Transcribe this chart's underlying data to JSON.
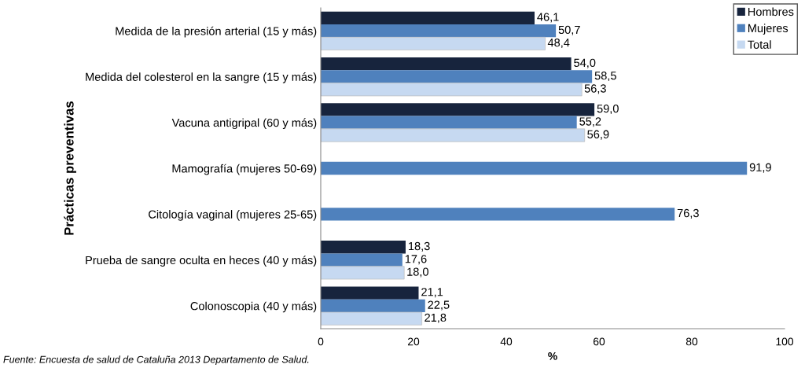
{
  "chart_data": {
    "type": "bar",
    "orientation": "horizontal",
    "xlabel": "%",
    "ylabel": "Prácticas preventivas",
    "categories": [
      "Medida de la presión arterial (15 y más)",
      "Medida del colesterol en la sangre (15 y más)",
      "Vacuna antigripal (60 y más)",
      "Mamografía (mujeres 50-69)",
      "Citología vaginal (mujeres 25-65)",
      "Prueba de sangre oculta en heces (40 y más)",
      "Colonoscopia (40 y más)"
    ],
    "series": [
      {
        "name": "Hombres",
        "color": "#17243d",
        "values": [
          46.1,
          54.0,
          59.0,
          null,
          null,
          18.3,
          21.1
        ],
        "value_labels": [
          "46,1",
          "54,0",
          "59,0",
          null,
          null,
          "18,3",
          "21,1"
        ]
      },
      {
        "name": "Mujeres",
        "color": "#4f81bd",
        "values": [
          50.7,
          58.5,
          55.2,
          91.9,
          76.3,
          17.6,
          22.5
        ],
        "value_labels": [
          "50,7",
          "58,5",
          "55,2",
          "91,9",
          "76,3",
          "17,6",
          "22,5"
        ]
      },
      {
        "name": "Total",
        "color": "#c6d9f1",
        "values": [
          48.4,
          56.3,
          56.9,
          null,
          null,
          18.0,
          21.8
        ],
        "value_labels": [
          "48,4",
          "56,3",
          "56,9",
          null,
          null,
          "18,0",
          "21,8"
        ]
      }
    ],
    "xlim": [
      0,
      100
    ],
    "xticks": [
      0,
      20,
      40,
      60,
      80,
      100
    ],
    "grid": false,
    "legend": "top right",
    "annotations": [
      "Fuente: Encuesta de salud de Cataluña 2013 Departamento de Salud."
    ]
  }
}
